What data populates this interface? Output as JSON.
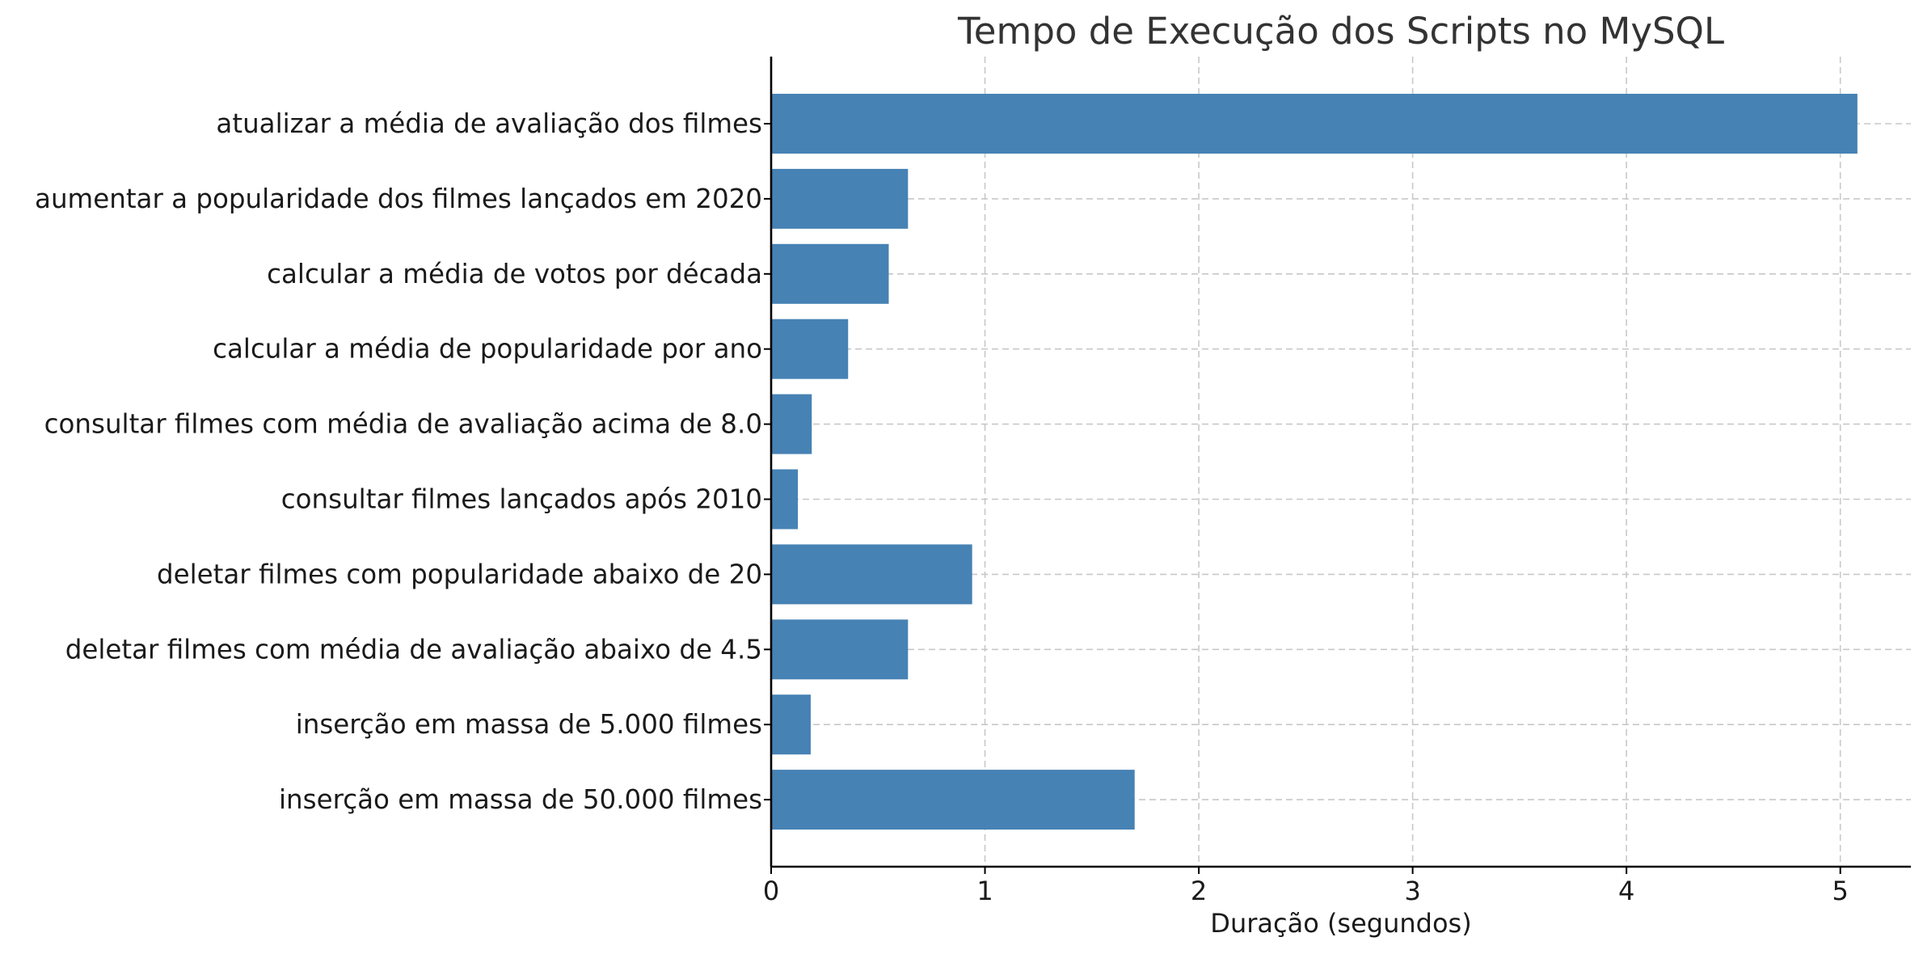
{
  "chart_data": {
    "type": "bar",
    "orientation": "horizontal",
    "title": "Tempo de Execução dos Scripts no MySQL",
    "xlabel": "Duração (segundos)",
    "ylabel": "",
    "categories": [
      "atualizar a média de avaliação dos filmes",
      "aumentar a popularidade dos filmes lançados em 2020",
      "calcular a média de votos por década",
      "calcular a média de popularidade por ano",
      "consultar filmes com média de avaliação acima de 8.0",
      "consultar filmes lançados após 2010",
      "deletar filmes com popularidade abaixo de 20",
      "deletar filmes com média de avaliação abaixo de 4.5",
      "inserção em massa de 5.000 filmes",
      "inserção em massa de 50.000 filmes"
    ],
    "values": [
      5.08,
      0.64,
      0.55,
      0.36,
      0.19,
      0.125,
      0.94,
      0.64,
      0.185,
      1.7
    ],
    "xlim": [
      0,
      5.33
    ],
    "xticks": [
      "0",
      "1",
      "2",
      "3",
      "4",
      "5"
    ],
    "grid": true,
    "legend": "none",
    "colors": {
      "bar": "#4682b4",
      "grid": "#c8c8c8",
      "axis": "#000000",
      "title": "#333333",
      "text": "#1a1a1a"
    }
  }
}
